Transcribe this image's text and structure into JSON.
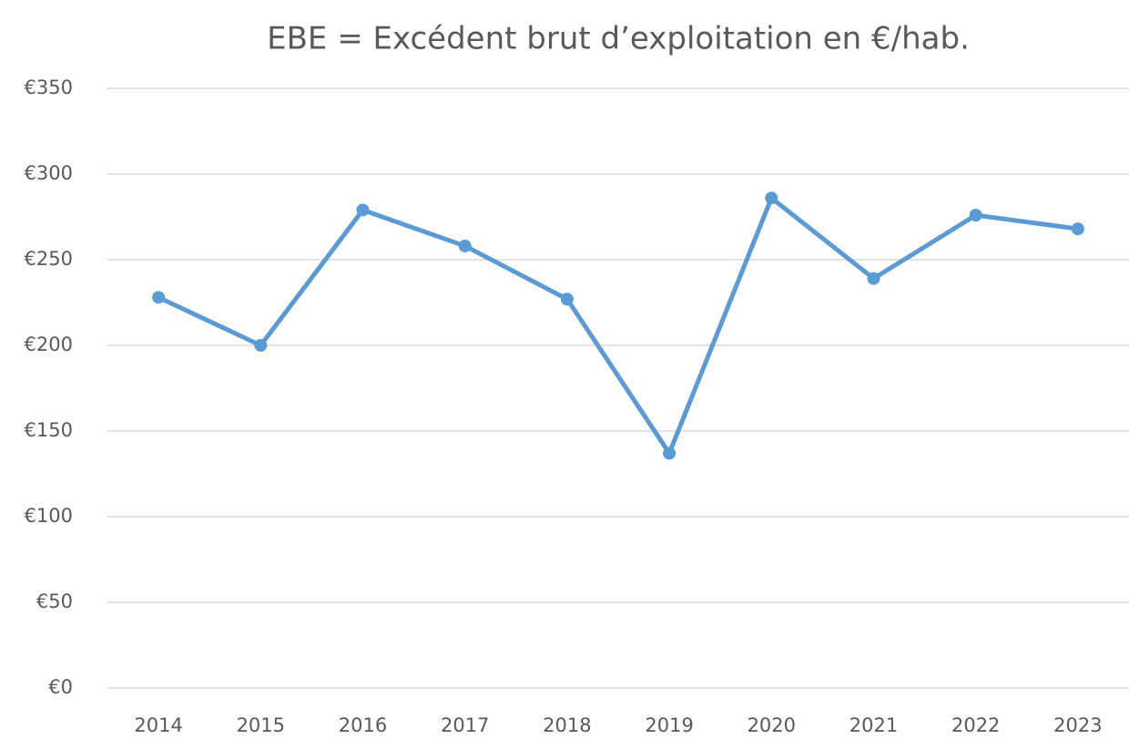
{
  "chart_data": {
    "type": "line",
    "title": "EBE = Excédent brut d’exploitation en €/hab.",
    "categories": [
      "2014",
      "2015",
      "2016",
      "2017",
      "2018",
      "2019",
      "2020",
      "2021",
      "2022",
      "2023"
    ],
    "series": [
      {
        "name": "EBE",
        "color": "#5b9bd5",
        "values": [
          228,
          200,
          279,
          258,
          227,
          137,
          286,
          239,
          276,
          268
        ]
      }
    ],
    "ylim": [
      0,
      350
    ],
    "yticks": [
      {
        "value": 0,
        "label": "€0"
      },
      {
        "value": 50,
        "label": "€50"
      },
      {
        "value": 100,
        "label": "€100"
      },
      {
        "value": 150,
        "label": "€150"
      },
      {
        "value": 200,
        "label": "€200"
      },
      {
        "value": 250,
        "label": "€250"
      },
      {
        "value": 300,
        "label": "€300"
      },
      {
        "value": 350,
        "label": "€350"
      }
    ],
    "grid": true,
    "legend": false
  }
}
